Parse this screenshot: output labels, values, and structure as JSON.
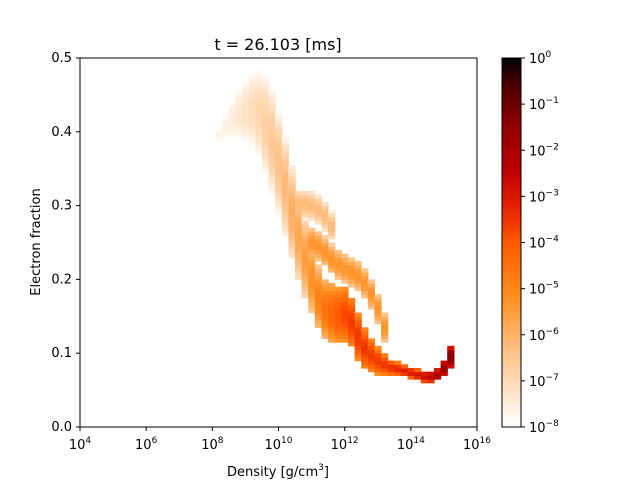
{
  "chart_data": {
    "type": "heatmap",
    "title": "t = 26.103 [ms]",
    "xlabel_main": "Density [g/cm",
    "xlabel_sup": "3",
    "xlabel_tail": "]",
    "ylabel": "Electron fraction",
    "x_scale": "log",
    "xlim_exp": [
      4,
      16
    ],
    "ylim": [
      0,
      0.5
    ],
    "x_ticks": [
      {
        "base": "10",
        "exp": "4",
        "e": 4
      },
      {
        "base": "10",
        "exp": "6",
        "e": 6
      },
      {
        "base": "10",
        "exp": "8",
        "e": 8
      },
      {
        "base": "10",
        "exp": "10",
        "e": 10
      },
      {
        "base": "10",
        "exp": "12",
        "e": 12
      },
      {
        "base": "10",
        "exp": "14",
        "e": 14
      },
      {
        "base": "10",
        "exp": "16",
        "e": 16
      }
    ],
    "y_ticks": [
      "0.0",
      "0.1",
      "0.2",
      "0.3",
      "0.4",
      "0.5"
    ],
    "colorbar": {
      "scale": "log",
      "colormap": "gist_heat_r",
      "range_exp": [
        -8,
        0
      ],
      "ticks": [
        {
          "base": "10",
          "exp": "0",
          "e": 0
        },
        {
          "base": "10",
          "exp": "−1",
          "e": -1
        },
        {
          "base": "10",
          "exp": "−2",
          "e": -2
        },
        {
          "base": "10",
          "exp": "−3",
          "e": -3
        },
        {
          "base": "10",
          "exp": "−4",
          "e": -4
        },
        {
          "base": "10",
          "exp": "−5",
          "e": -5
        },
        {
          "base": "10",
          "exp": "−6",
          "e": -6
        },
        {
          "base": "10",
          "exp": "−7",
          "e": -7
        },
        {
          "base": "10",
          "exp": "−8",
          "e": -8
        }
      ]
    },
    "bins_log_density_step": 0.2,
    "bins_ye_step": 0.005,
    "distribution_ridge": [
      {
        "log_density": 8.0,
        "ye": 0.39,
        "spread": 0.02,
        "log_value": -7.8
      },
      {
        "log_density": 8.6,
        "ye": 0.42,
        "spread": 0.05,
        "log_value": -7.4
      },
      {
        "log_density": 9.2,
        "ye": 0.43,
        "spread": 0.07,
        "log_value": -7.0
      },
      {
        "log_density": 9.6,
        "ye": 0.4,
        "spread": 0.08,
        "log_value": -6.6
      },
      {
        "log_density": 10.0,
        "ye": 0.34,
        "spread": 0.07,
        "log_value": -6.3
      },
      {
        "log_density": 10.4,
        "ye": 0.27,
        "spread": 0.06,
        "log_value": -5.8
      },
      {
        "log_density": 10.8,
        "ye": 0.21,
        "spread": 0.05,
        "log_value": -5.4
      },
      {
        "log_density": 11.2,
        "ye": 0.16,
        "spread": 0.04,
        "log_value": -4.7
      },
      {
        "log_density": 11.6,
        "ye": 0.15,
        "spread": 0.04,
        "log_value": -4.1
      },
      {
        "log_density": 12.0,
        "ye": 0.15,
        "spread": 0.035,
        "log_value": -3.6
      },
      {
        "log_density": 12.4,
        "ye": 0.11,
        "spread": 0.03,
        "log_value": -3.5
      },
      {
        "log_density": 12.8,
        "ye": 0.09,
        "spread": 0.02,
        "log_value": -3.6
      },
      {
        "log_density": 13.2,
        "ye": 0.08,
        "spread": 0.012,
        "log_value": -3.5
      },
      {
        "log_density": 13.6,
        "ye": 0.075,
        "spread": 0.008,
        "log_value": -3.2
      },
      {
        "log_density": 14.0,
        "ye": 0.07,
        "spread": 0.007,
        "log_value": -3.0
      },
      {
        "log_density": 14.4,
        "ye": 0.065,
        "spread": 0.008,
        "log_value": -2.6
      },
      {
        "log_density": 14.8,
        "ye": 0.07,
        "spread": 0.008,
        "log_value": -1.8
      },
      {
        "log_density": 15.2,
        "ye": 0.1,
        "spread": 0.015,
        "log_value": -1.2
      }
    ],
    "secondary_ridges": [
      {
        "points": [
          [
            10.8,
            0.25
          ],
          [
            11.2,
            0.24
          ],
          [
            11.6,
            0.22
          ],
          [
            12.0,
            0.21
          ],
          [
            12.4,
            0.2
          ],
          [
            12.8,
            0.17
          ],
          [
            13.2,
            0.12
          ]
        ],
        "spread": 0.02,
        "log_value": -5.3
      },
      {
        "points": [
          [
            10.4,
            0.3
          ],
          [
            10.8,
            0.3
          ],
          [
            11.2,
            0.29
          ],
          [
            11.5,
            0.27
          ]
        ],
        "spread": 0.02,
        "log_value": -6.2
      }
    ]
  }
}
